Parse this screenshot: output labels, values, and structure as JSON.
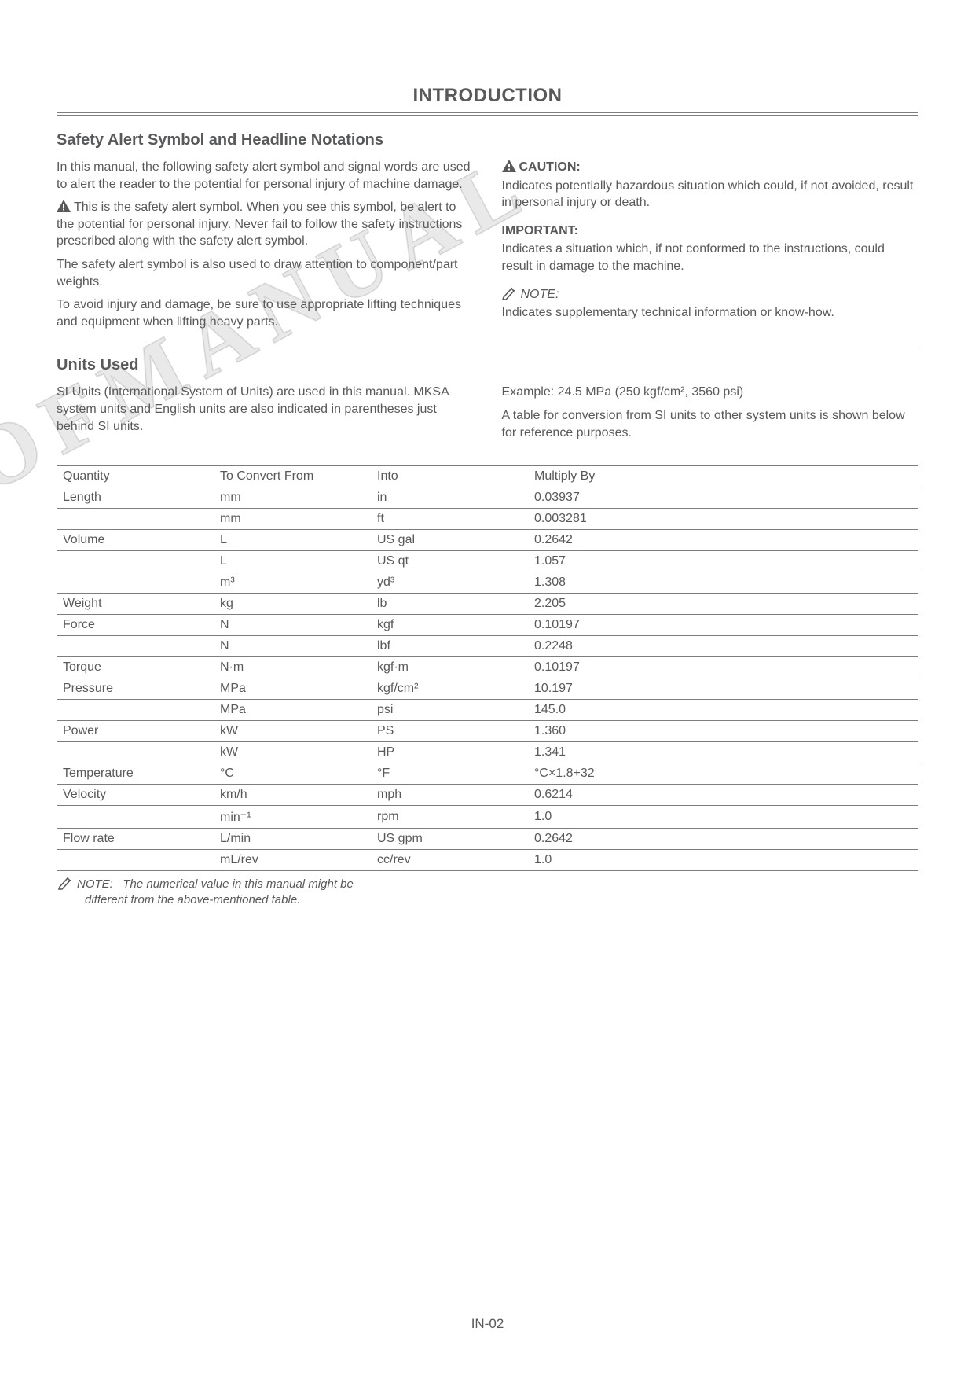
{
  "page": {
    "title": "INTRODUCTION",
    "number": "IN-02",
    "watermark": "OFMANUAL"
  },
  "safety": {
    "heading": "Safety Alert Symbol and Headline Notations",
    "left": {
      "p1": "In this manual, the following safety alert symbol and signal words are used to alert the reader to the potential for personal injury of machine damage.",
      "p2": "This is the safety alert symbol. When you see this symbol, be alert to the potential for personal injury. Never fail to follow the safety instructions prescribed along with the safety alert symbol.",
      "p3": "The safety alert symbol is also used to draw attention to component/part weights.",
      "p4": "To avoid injury and damage, be sure to use appropriate lifting techniques and equipment when lifting heavy parts."
    },
    "right": {
      "caution_label": "CAUTION:",
      "caution_body": "Indicates potentially hazardous situation which could, if not avoided, result in personal injury or death.",
      "important_label": "IMPORTANT:",
      "important_body": "Indicates a situation which, if not conformed to the instructions, could result in damage to the machine.",
      "note_label": "NOTE:",
      "note_body": "Indicates supplementary technical information or know-how."
    }
  },
  "units": {
    "heading": "Units Used",
    "left_p1": "SI Units (International System of Units) are used in this manual. MKSA system units and English units are also indicated in parentheses just behind SI units.",
    "right_p1": "Example: 24.5 MPa (250 kgf/cm², 3560 psi)",
    "right_p2": "A table for conversion from SI units to other system units is shown below for reference purposes."
  },
  "table": {
    "headers": [
      "Quantity",
      "To Convert From",
      "Into",
      "Multiply By"
    ],
    "rows": [
      [
        "Length",
        "mm",
        "in",
        "0.03937"
      ],
      [
        "",
        "mm",
        "ft",
        "0.003281"
      ],
      [
        "Volume",
        "L",
        "US gal",
        "0.2642"
      ],
      [
        "",
        "L",
        "US qt",
        "1.057"
      ],
      [
        "",
        "m³",
        "yd³",
        "1.308"
      ],
      [
        "Weight",
        "kg",
        "lb",
        "2.205"
      ],
      [
        "Force",
        "N",
        "kgf",
        "0.10197"
      ],
      [
        "",
        "N",
        "lbf",
        "0.2248"
      ],
      [
        "Torque",
        "N·m",
        "kgf·m",
        "0.10197"
      ],
      [
        "Pressure",
        "MPa",
        "kgf/cm²",
        "10.197"
      ],
      [
        "",
        "MPa",
        "psi",
        "145.0"
      ],
      [
        "Power",
        "kW",
        "PS",
        "1.360"
      ],
      [
        "",
        "kW",
        "HP",
        "1.341"
      ],
      [
        "Temperature",
        "°C",
        "°F",
        "°C×1.8+32"
      ],
      [
        "Velocity",
        "km/h",
        "mph",
        "0.6214"
      ],
      [
        "",
        "min⁻¹",
        "rpm",
        "1.0"
      ],
      [
        "Flow rate",
        "L/min",
        "US gpm",
        "0.2642"
      ],
      [
        "",
        "mL/rev",
        "cc/rev",
        "1.0"
      ]
    ]
  },
  "footnote": {
    "label": "NOTE:",
    "body": "The numerical value in this manual might be different from the above-mentioned table."
  },
  "colors": {
    "text": "#58595b",
    "rule_dark": "#7c7d7f",
    "rule_light": "#b9bab9",
    "background": "#ffffff"
  }
}
